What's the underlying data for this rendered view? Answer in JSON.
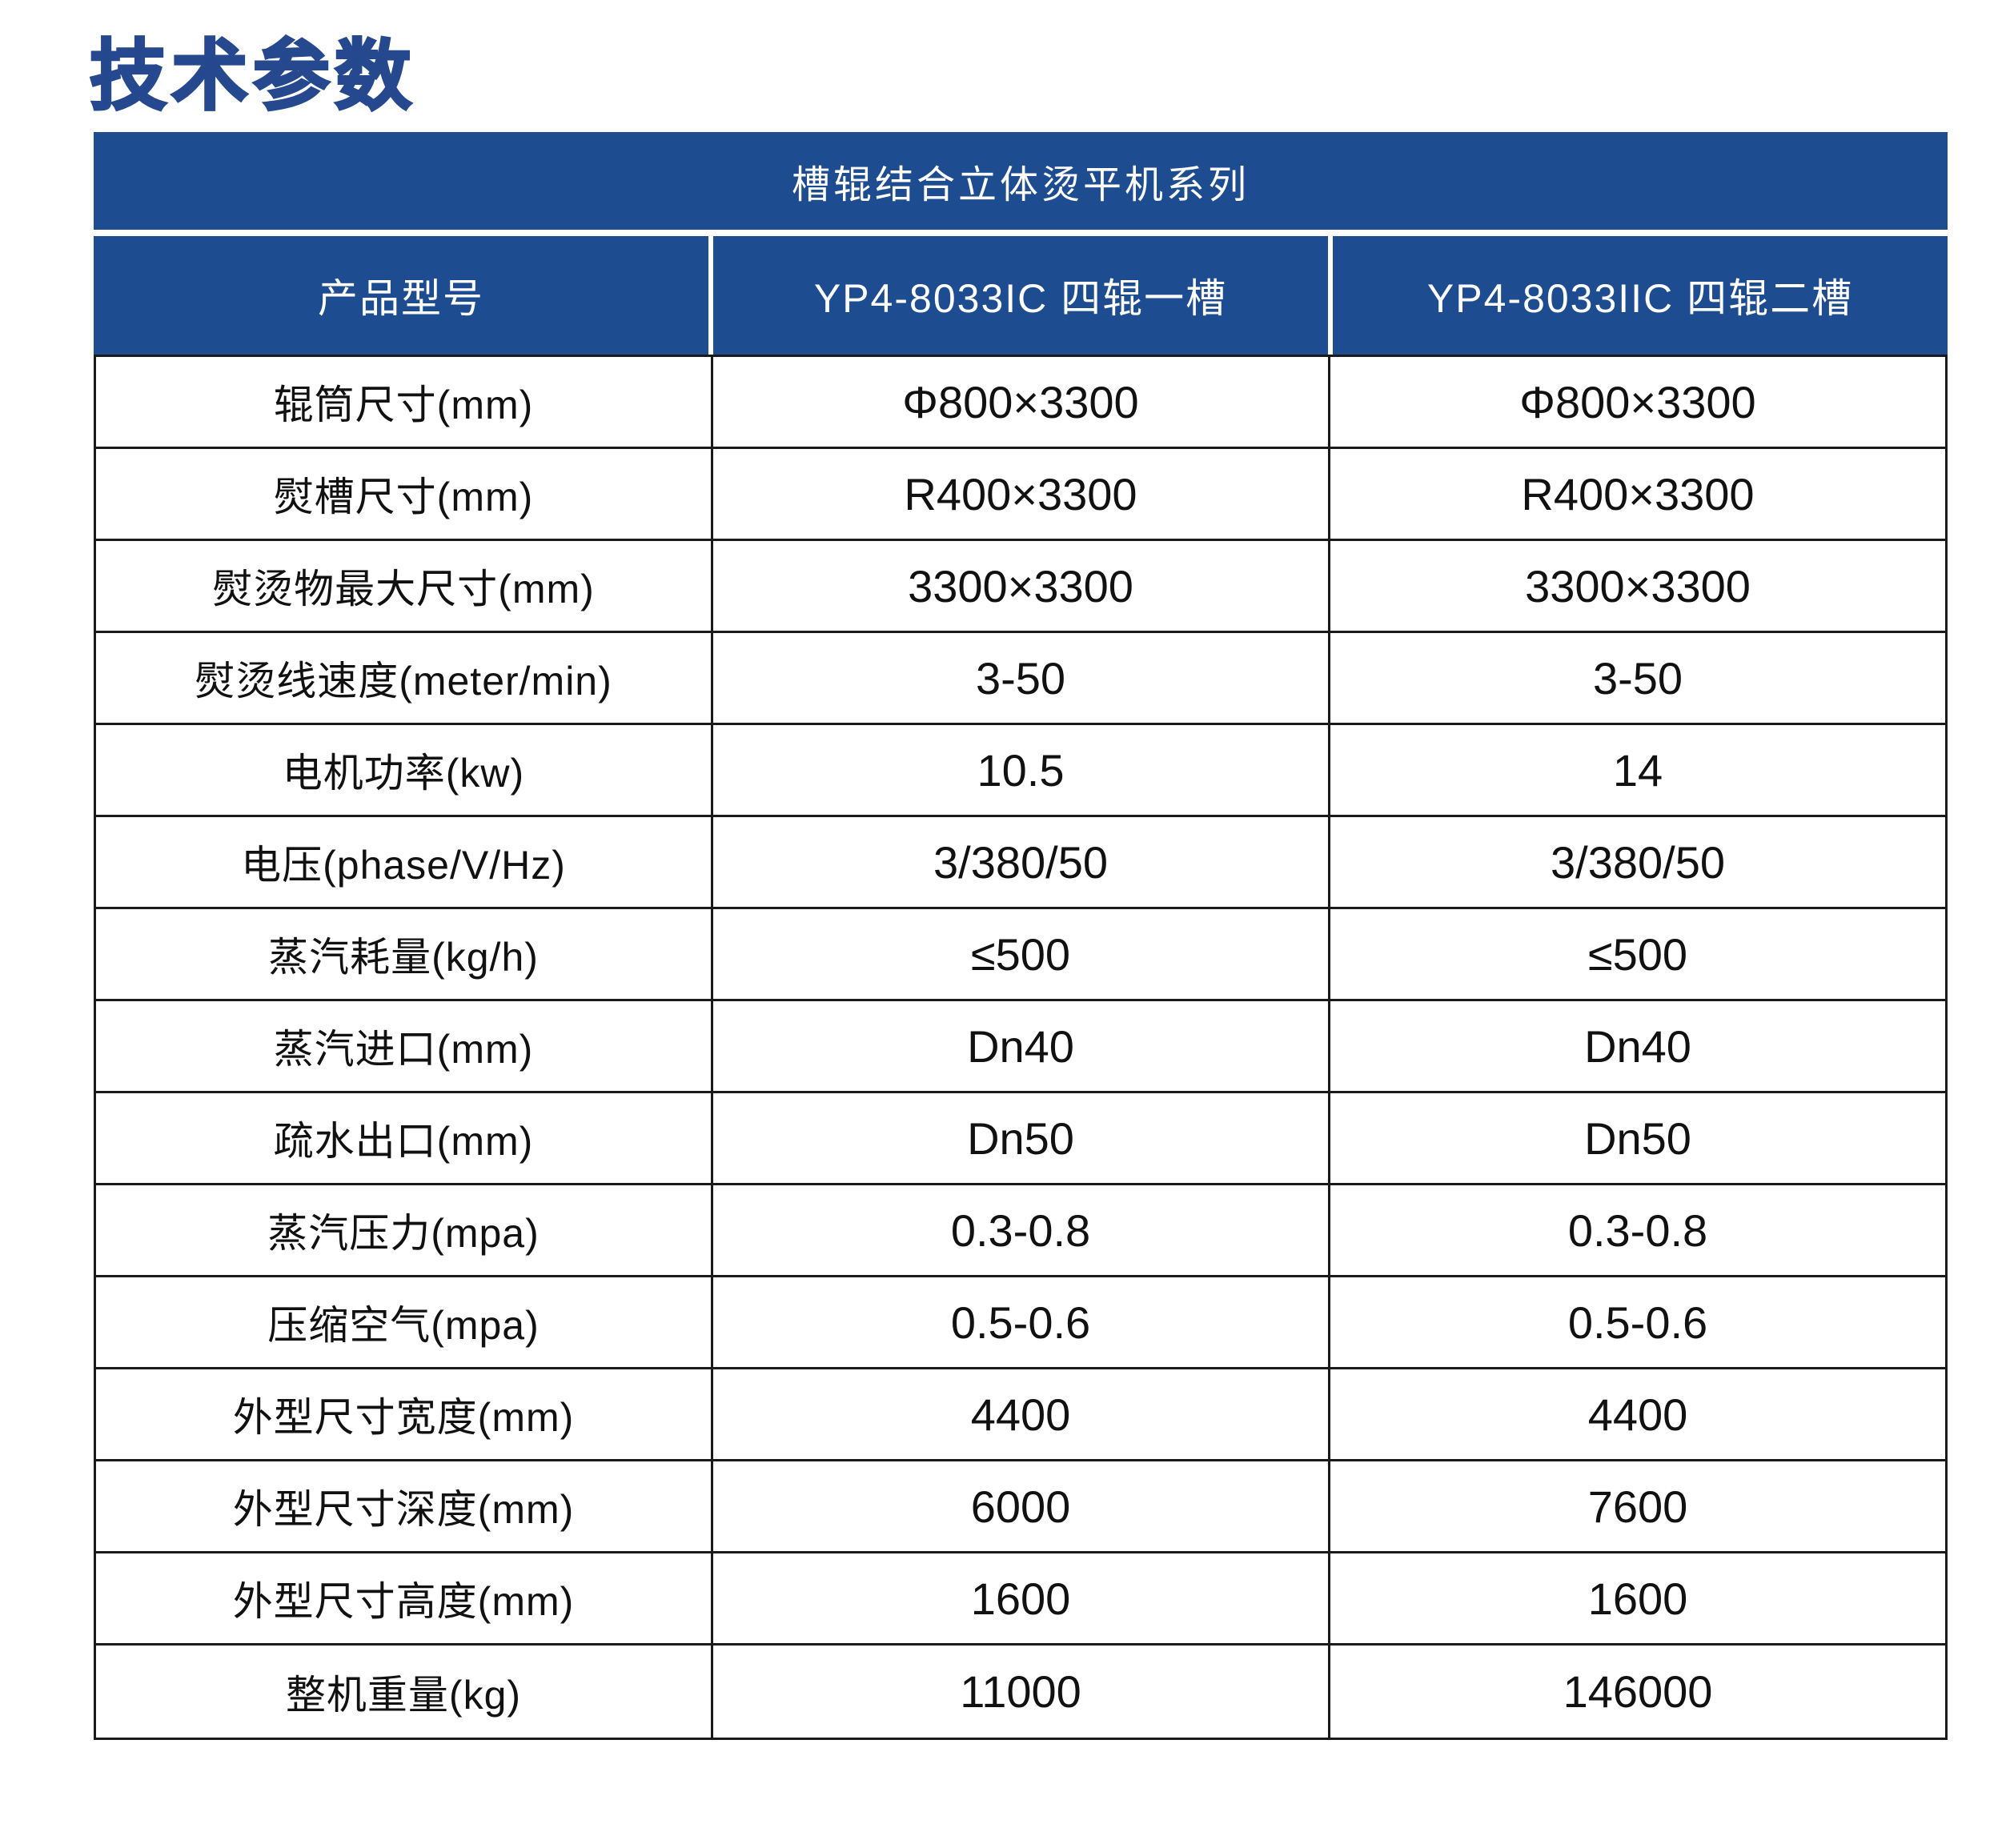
{
  "page": {
    "title": "技术参数"
  },
  "table": {
    "series_title": "槽辊结合立体烫平机系列",
    "columns": [
      "产品型号",
      "YP4-8033IC 四辊一槽",
      "YP4-8033IIC 四辊二槽"
    ],
    "rows": [
      {
        "label": "辊筒尺寸(mm)",
        "values": [
          "Φ800×3300",
          "Φ800×3300"
        ]
      },
      {
        "label": "熨槽尺寸(mm)",
        "values": [
          "R400×3300",
          "R400×3300"
        ]
      },
      {
        "label": "熨烫物最大尺寸(mm)",
        "values": [
          "3300×3300",
          "3300×3300"
        ]
      },
      {
        "label": "熨烫线速度(meter/min)",
        "values": [
          "3-50",
          "3-50"
        ]
      },
      {
        "label": "电机功率(kw)",
        "values": [
          "10.5",
          "14"
        ]
      },
      {
        "label": "电压(phase/V/Hz)",
        "values": [
          "3/380/50",
          "3/380/50"
        ]
      },
      {
        "label": "蒸汽耗量(kg/h)",
        "values": [
          "≤500",
          "≤500"
        ]
      },
      {
        "label": "蒸汽进口(mm)",
        "values": [
          "Dn40",
          "Dn40"
        ]
      },
      {
        "label": "疏水出口(mm)",
        "values": [
          "Dn50",
          "Dn50"
        ]
      },
      {
        "label": "蒸汽压力(mpa)",
        "values": [
          "0.3-0.8",
          "0.3-0.8"
        ]
      },
      {
        "label": "压缩空气(mpa)",
        "values": [
          "0.5-0.6",
          "0.5-0.6"
        ]
      },
      {
        "label": "外型尺寸宽度(mm)",
        "values": [
          "4400",
          "4400"
        ]
      },
      {
        "label": "外型尺寸深度(mm)",
        "values": [
          "6000",
          "7600"
        ]
      },
      {
        "label": "外型尺寸高度(mm)",
        "values": [
          "1600",
          "1600"
        ]
      },
      {
        "label": "整机重量(kg)",
        "values": [
          "11000",
          "146000"
        ]
      }
    ],
    "colors": {
      "header_bg": "#1e4c90",
      "title_color": "#25488e",
      "border": "#1a1a1a",
      "text": "#111111"
    }
  }
}
